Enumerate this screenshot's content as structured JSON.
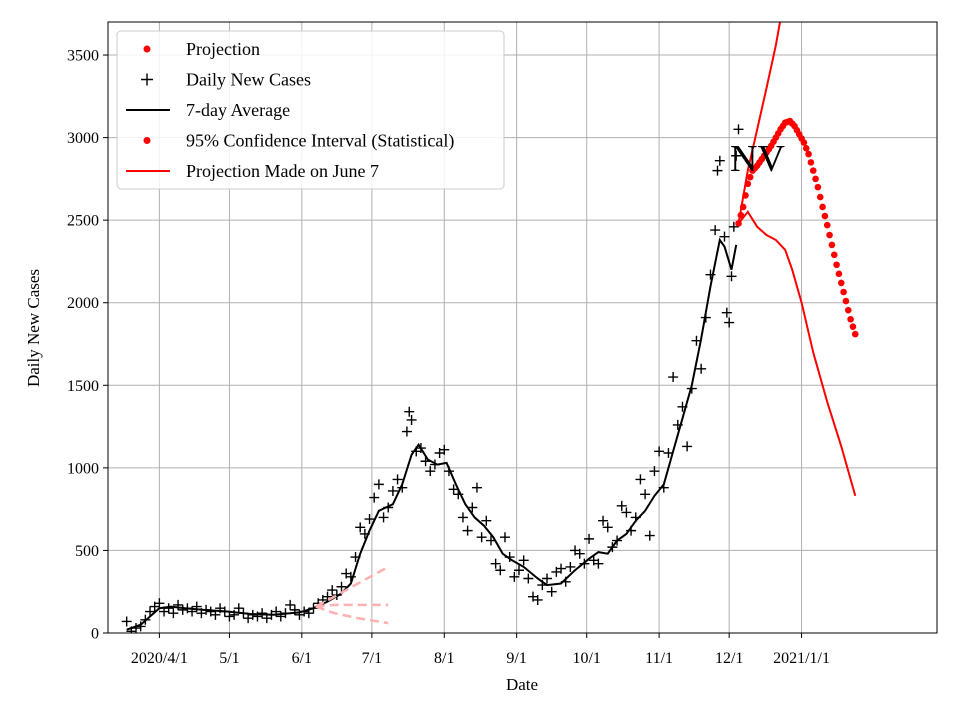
{
  "chart_data": {
    "type": "line",
    "title": "",
    "annotation": "NV",
    "xlabel": "Date",
    "ylabel": "Daily New Cases",
    "grid": true,
    "legend_placement": "top-left",
    "xlim": [
      "2020-03-10",
      "2021-02-28"
    ],
    "ylim": [
      0,
      3700
    ],
    "x_ticks": [
      {
        "date": "2020-04-01",
        "label": "2020/4/1"
      },
      {
        "date": "2020-05-01",
        "label": "5/1"
      },
      {
        "date": "2020-06-01",
        "label": "6/1"
      },
      {
        "date": "2020-07-01",
        "label": "7/1"
      },
      {
        "date": "2020-08-01",
        "label": "8/1"
      },
      {
        "date": "2020-09-01",
        "label": "9/1"
      },
      {
        "date": "2020-10-01",
        "label": "10/1"
      },
      {
        "date": "2020-11-01",
        "label": "11/1"
      },
      {
        "date": "2020-12-01",
        "label": "12/1"
      },
      {
        "date": "2021-01-01",
        "label": "2021/1/1"
      }
    ],
    "y_ticks": [
      0,
      500,
      1000,
      1500,
      2000,
      2500,
      3000,
      3500
    ],
    "legend": [
      {
        "label": "Projection",
        "marker": "dot",
        "color": "#ff0000"
      },
      {
        "label": "Daily New Cases",
        "marker": "plus",
        "color": "#000000"
      },
      {
        "label": "7-day Average",
        "marker": "line",
        "color": "#000000"
      },
      {
        "label": "95% Confidence Interval (Statistical)",
        "marker": "dot",
        "color": "#ff0000"
      },
      {
        "label": "Projection Made on June 7",
        "marker": "line",
        "color": "#ff0000"
      }
    ],
    "series": [
      {
        "name": "Daily New Cases",
        "style": "plus",
        "color": "#000000",
        "points": [
          [
            "2020-03-18",
            70
          ],
          [
            "2020-03-20",
            10
          ],
          [
            "2020-03-22",
            30
          ],
          [
            "2020-03-24",
            40
          ],
          [
            "2020-03-26",
            80
          ],
          [
            "2020-03-28",
            130
          ],
          [
            "2020-03-30",
            160
          ],
          [
            "2020-04-01",
            180
          ],
          [
            "2020-04-03",
            130
          ],
          [
            "2020-04-05",
            150
          ],
          [
            "2020-04-07",
            120
          ],
          [
            "2020-04-09",
            170
          ],
          [
            "2020-04-11",
            140
          ],
          [
            "2020-04-13",
            150
          ],
          [
            "2020-04-15",
            130
          ],
          [
            "2020-04-17",
            160
          ],
          [
            "2020-04-19",
            120
          ],
          [
            "2020-04-21",
            140
          ],
          [
            "2020-04-23",
            130
          ],
          [
            "2020-04-25",
            110
          ],
          [
            "2020-04-27",
            150
          ],
          [
            "2020-04-29",
            130
          ],
          [
            "2020-05-01",
            100
          ],
          [
            "2020-05-03",
            110
          ],
          [
            "2020-05-05",
            150
          ],
          [
            "2020-05-07",
            120
          ],
          [
            "2020-05-09",
            90
          ],
          [
            "2020-05-11",
            110
          ],
          [
            "2020-05-13",
            100
          ],
          [
            "2020-05-15",
            120
          ],
          [
            "2020-05-17",
            90
          ],
          [
            "2020-05-19",
            110
          ],
          [
            "2020-05-21",
            130
          ],
          [
            "2020-05-23",
            100
          ],
          [
            "2020-05-25",
            120
          ],
          [
            "2020-05-27",
            170
          ],
          [
            "2020-05-29",
            140
          ],
          [
            "2020-05-31",
            110
          ],
          [
            "2020-06-02",
            130
          ],
          [
            "2020-06-04",
            120
          ],
          [
            "2020-06-06",
            150
          ],
          [
            "2020-06-08",
            180
          ],
          [
            "2020-06-10",
            200
          ],
          [
            "2020-06-12",
            220
          ],
          [
            "2020-06-14",
            260
          ],
          [
            "2020-06-16",
            230
          ],
          [
            "2020-06-18",
            280
          ],
          [
            "2020-06-20",
            360
          ],
          [
            "2020-06-22",
            340
          ],
          [
            "2020-06-24",
            460
          ],
          [
            "2020-06-26",
            640
          ],
          [
            "2020-06-28",
            600
          ],
          [
            "2020-06-30",
            690
          ],
          [
            "2020-07-02",
            820
          ],
          [
            "2020-07-04",
            900
          ],
          [
            "2020-07-06",
            700
          ],
          [
            "2020-07-08",
            760
          ],
          [
            "2020-07-10",
            860
          ],
          [
            "2020-07-12",
            930
          ],
          [
            "2020-07-14",
            880
          ],
          [
            "2020-07-16",
            1220
          ],
          [
            "2020-07-17",
            1340
          ],
          [
            "2020-07-18",
            1290
          ],
          [
            "2020-07-20",
            1100
          ],
          [
            "2020-07-22",
            1120
          ],
          [
            "2020-07-24",
            1040
          ],
          [
            "2020-07-26",
            980
          ],
          [
            "2020-07-28",
            1020
          ],
          [
            "2020-07-30",
            1090
          ],
          [
            "2020-08-01",
            1110
          ],
          [
            "2020-08-03",
            980
          ],
          [
            "2020-08-05",
            870
          ],
          [
            "2020-08-07",
            840
          ],
          [
            "2020-08-09",
            700
          ],
          [
            "2020-08-11",
            620
          ],
          [
            "2020-08-13",
            760
          ],
          [
            "2020-08-15",
            880
          ],
          [
            "2020-08-17",
            580
          ],
          [
            "2020-08-19",
            680
          ],
          [
            "2020-08-21",
            560
          ],
          [
            "2020-08-23",
            420
          ],
          [
            "2020-08-25",
            380
          ],
          [
            "2020-08-27",
            580
          ],
          [
            "2020-08-29",
            460
          ],
          [
            "2020-08-31",
            340
          ],
          [
            "2020-09-02",
            380
          ],
          [
            "2020-09-04",
            440
          ],
          [
            "2020-09-06",
            330
          ],
          [
            "2020-09-08",
            220
          ],
          [
            "2020-09-10",
            200
          ],
          [
            "2020-09-12",
            290
          ],
          [
            "2020-09-14",
            330
          ],
          [
            "2020-09-16",
            250
          ],
          [
            "2020-09-18",
            370
          ],
          [
            "2020-09-20",
            390
          ],
          [
            "2020-09-22",
            310
          ],
          [
            "2020-09-24",
            400
          ],
          [
            "2020-09-26",
            500
          ],
          [
            "2020-09-28",
            480
          ],
          [
            "2020-09-30",
            420
          ],
          [
            "2020-10-02",
            570
          ],
          [
            "2020-10-04",
            440
          ],
          [
            "2020-10-06",
            420
          ],
          [
            "2020-10-08",
            680
          ],
          [
            "2020-10-10",
            640
          ],
          [
            "2020-10-12",
            520
          ],
          [
            "2020-10-14",
            560
          ],
          [
            "2020-10-16",
            770
          ],
          [
            "2020-10-18",
            730
          ],
          [
            "2020-10-20",
            620
          ],
          [
            "2020-10-22",
            700
          ],
          [
            "2020-10-24",
            930
          ],
          [
            "2020-10-26",
            840
          ],
          [
            "2020-10-28",
            590
          ],
          [
            "2020-10-30",
            980
          ],
          [
            "2020-11-01",
            1100
          ],
          [
            "2020-11-03",
            880
          ],
          [
            "2020-11-05",
            1090
          ],
          [
            "2020-11-07",
            1550
          ],
          [
            "2020-11-09",
            1260
          ],
          [
            "2020-11-11",
            1370
          ],
          [
            "2020-11-13",
            1130
          ],
          [
            "2020-11-15",
            1480
          ],
          [
            "2020-11-17",
            1770
          ],
          [
            "2020-11-19",
            1600
          ],
          [
            "2020-11-21",
            1910
          ],
          [
            "2020-11-23",
            2170
          ],
          [
            "2020-11-25",
            2440
          ],
          [
            "2020-11-26",
            2800
          ],
          [
            "2020-11-27",
            2860
          ],
          [
            "2020-11-29",
            2400
          ],
          [
            "2020-11-30",
            1940
          ],
          [
            "2020-12-01",
            1880
          ],
          [
            "2020-12-02",
            2160
          ],
          [
            "2020-12-03",
            2460
          ],
          [
            "2020-12-04",
            2890
          ],
          [
            "2020-12-05",
            3050
          ]
        ]
      },
      {
        "name": "7-day Average",
        "style": "line",
        "color": "#000000",
        "points": [
          [
            "2020-03-18",
            20
          ],
          [
            "2020-03-24",
            50
          ],
          [
            "2020-03-28",
            100
          ],
          [
            "2020-04-01",
            150
          ],
          [
            "2020-04-06",
            160
          ],
          [
            "2020-04-12",
            150
          ],
          [
            "2020-04-20",
            140
          ],
          [
            "2020-04-30",
            130
          ],
          [
            "2020-05-10",
            115
          ],
          [
            "2020-05-20",
            110
          ],
          [
            "2020-05-31",
            125
          ],
          [
            "2020-06-06",
            150
          ],
          [
            "2020-06-12",
            190
          ],
          [
            "2020-06-18",
            240
          ],
          [
            "2020-06-22",
            300
          ],
          [
            "2020-06-26",
            480
          ],
          [
            "2020-06-30",
            620
          ],
          [
            "2020-07-04",
            740
          ],
          [
            "2020-07-10",
            780
          ],
          [
            "2020-07-14",
            900
          ],
          [
            "2020-07-18",
            1080
          ],
          [
            "2020-07-21",
            1140
          ],
          [
            "2020-07-25",
            1050
          ],
          [
            "2020-07-29",
            1020
          ],
          [
            "2020-08-02",
            1030
          ],
          [
            "2020-08-06",
            900
          ],
          [
            "2020-08-10",
            780
          ],
          [
            "2020-08-14",
            700
          ],
          [
            "2020-08-18",
            650
          ],
          [
            "2020-08-22",
            580
          ],
          [
            "2020-08-26",
            480
          ],
          [
            "2020-08-30",
            440
          ],
          [
            "2020-09-04",
            400
          ],
          [
            "2020-09-10",
            330
          ],
          [
            "2020-09-14",
            290
          ],
          [
            "2020-09-20",
            300
          ],
          [
            "2020-09-26",
            380
          ],
          [
            "2020-10-02",
            450
          ],
          [
            "2020-10-06",
            490
          ],
          [
            "2020-10-10",
            480
          ],
          [
            "2020-10-14",
            560
          ],
          [
            "2020-10-18",
            600
          ],
          [
            "2020-10-22",
            680
          ],
          [
            "2020-10-26",
            740
          ],
          [
            "2020-10-30",
            830
          ],
          [
            "2020-11-03",
            900
          ],
          [
            "2020-11-07",
            1100
          ],
          [
            "2020-11-11",
            1300
          ],
          [
            "2020-11-15",
            1500
          ],
          [
            "2020-11-19",
            1780
          ],
          [
            "2020-11-23",
            2100
          ],
          [
            "2020-11-27",
            2380
          ],
          [
            "2020-11-29",
            2340
          ],
          [
            "2020-12-02",
            2200
          ],
          [
            "2020-12-04",
            2350
          ]
        ]
      },
      {
        "name": "Projection",
        "style": "dots",
        "color": "#ff0000",
        "points": [
          [
            "2020-12-05",
            2480
          ],
          [
            "2020-12-07",
            2580
          ],
          [
            "2020-12-09",
            2720
          ],
          [
            "2020-12-11",
            2800
          ],
          [
            "2020-12-13",
            2830
          ],
          [
            "2020-12-15",
            2870
          ],
          [
            "2020-12-17",
            2910
          ],
          [
            "2020-12-19",
            2950
          ],
          [
            "2020-12-21",
            3000
          ],
          [
            "2020-12-23",
            3050
          ],
          [
            "2020-12-25",
            3090
          ],
          [
            "2020-12-27",
            3100
          ],
          [
            "2020-12-29",
            3070
          ],
          [
            "2020-12-31",
            3020
          ],
          [
            "2021-01-02",
            2970
          ],
          [
            "2021-01-04",
            2900
          ],
          [
            "2021-01-06",
            2800
          ],
          [
            "2021-01-08",
            2700
          ],
          [
            "2021-01-10",
            2580
          ],
          [
            "2021-01-12",
            2470
          ],
          [
            "2021-01-14",
            2350
          ],
          [
            "2021-01-16",
            2230
          ],
          [
            "2021-01-18",
            2120
          ],
          [
            "2021-01-20",
            2010
          ],
          [
            "2021-01-22",
            1900
          ],
          [
            "2021-01-24",
            1810
          ]
        ]
      },
      {
        "name": "95% Confidence Interval (Statistical)",
        "style": "line",
        "color": "#ff0000",
        "bounds": [
          [
            [
              "2020-12-05",
              2480
            ],
            [
              "2020-12-09",
              2800
            ],
            [
              "2020-12-13",
              3050
            ],
            [
              "2020-12-17",
              3300
            ],
            [
              "2020-12-21",
              3560
            ],
            [
              "2020-12-24",
              3800
            ]
          ],
          [
            [
              "2020-12-05",
              2480
            ],
            [
              "2020-12-09",
              2550
            ],
            [
              "2020-12-13",
              2460
            ],
            [
              "2020-12-17",
              2410
            ],
            [
              "2020-12-21",
              2380
            ],
            [
              "2020-12-25",
              2320
            ],
            [
              "2020-12-28",
              2200
            ],
            [
              "2021-01-01",
              2000
            ],
            [
              "2021-01-06",
              1700
            ],
            [
              "2021-01-12",
              1400
            ],
            [
              "2021-01-18",
              1130
            ],
            [
              "2021-01-24",
              830
            ]
          ]
        ]
      },
      {
        "name": "Projection Made on June 7",
        "style": "dashed",
        "color": "#ffb0b0",
        "lines": [
          [
            [
              "2020-06-07",
              160
            ],
            [
              "2020-06-15",
              220
            ],
            [
              "2020-06-25",
              300
            ],
            [
              "2020-07-08",
              400
            ]
          ],
          [
            [
              "2020-06-07",
              160
            ],
            [
              "2020-06-15",
              170
            ],
            [
              "2020-06-25",
              170
            ],
            [
              "2020-07-08",
              170
            ]
          ],
          [
            [
              "2020-06-07",
              160
            ],
            [
              "2020-06-15",
              120
            ],
            [
              "2020-06-25",
              90
            ],
            [
              "2020-07-08",
              60
            ]
          ]
        ]
      }
    ]
  }
}
